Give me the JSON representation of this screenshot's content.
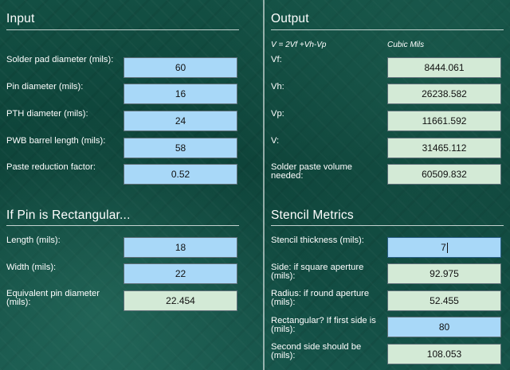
{
  "input": {
    "title": "Input",
    "fields": [
      {
        "label": "Solder pad diameter (mils):",
        "value": "60"
      },
      {
        "label": "Pin diameter (mils):",
        "value": "16"
      },
      {
        "label": "PTH diameter (mils):",
        "value": "24"
      },
      {
        "label": "PWB barrel length (mils):",
        "value": "58"
      },
      {
        "label": "Paste reduction factor:",
        "value": "0.52"
      }
    ]
  },
  "rectangular": {
    "title": "If Pin is Rectangular...",
    "length": {
      "label": "Length (mils):",
      "value": "18"
    },
    "width": {
      "label": "Width (mils):",
      "value": "22"
    },
    "equivalent": {
      "label": "Equivalent pin diameter (mils):",
      "value": "22.454"
    }
  },
  "output": {
    "title": "Output",
    "formula": "V = 2Vf +Vh-Vp",
    "units": "Cubic Mils",
    "fields": [
      {
        "label": "Vf:",
        "value": "8444.061"
      },
      {
        "label": "Vh:",
        "value": "26238.582"
      },
      {
        "label": "Vp:",
        "value": "11661.592"
      },
      {
        "label": "V:",
        "value": "31465.112"
      },
      {
        "label": "Solder paste volume needed:",
        "value": "60509.832"
      }
    ]
  },
  "stencil": {
    "title": "Stencil Metrics",
    "thickness": {
      "label": "Stencil thickness (mils):",
      "value": "7"
    },
    "square": {
      "label": "Side: if square aperture (mils):",
      "value": "92.975"
    },
    "round": {
      "label": "Radius: if round aperture (mils):",
      "value": "52.455"
    },
    "rect_first": {
      "label": "Rectangular? If first side is (mils):",
      "value": "80"
    },
    "rect_second": {
      "label": "Second side should be (mils):",
      "value": "108.053"
    }
  },
  "colors": {
    "input_field": "#a8d8f8",
    "output_field": "#d3ead6",
    "background": "#134f43"
  }
}
